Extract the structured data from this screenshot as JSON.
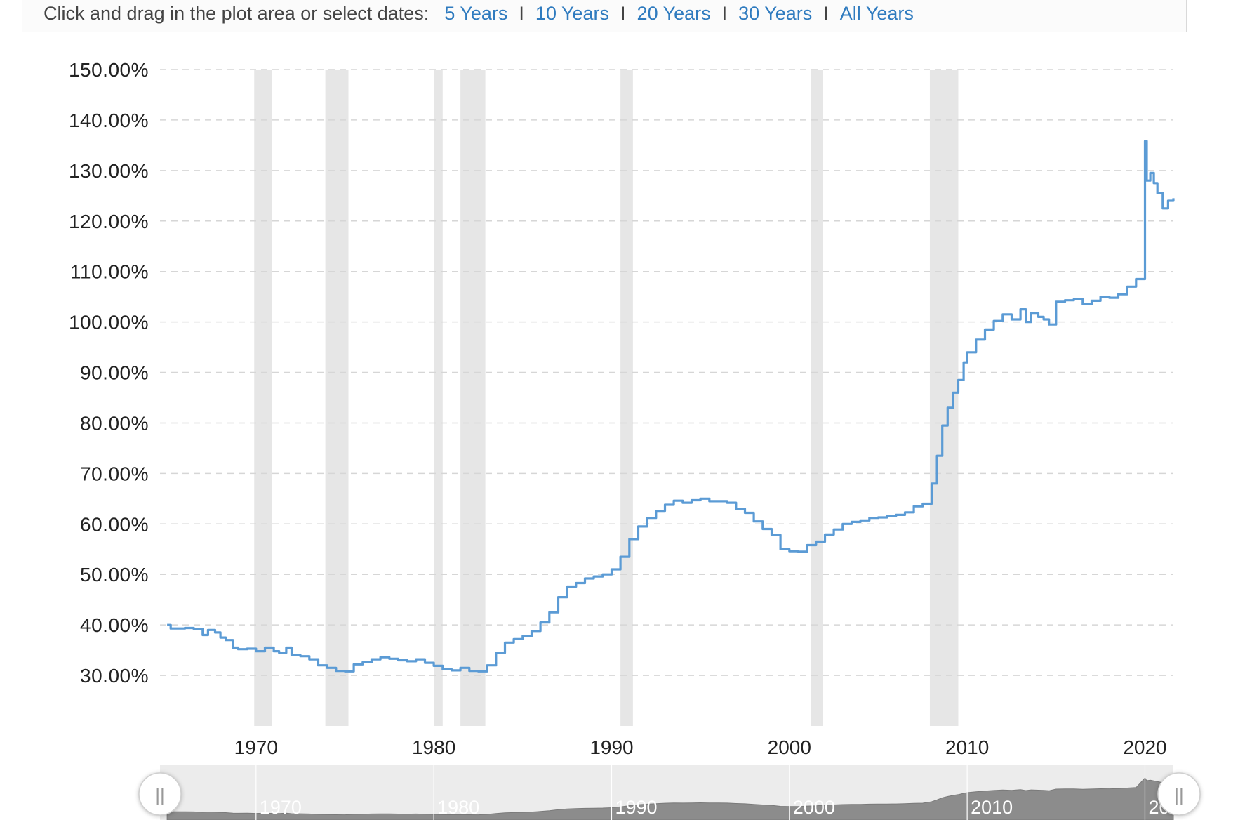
{
  "range_selector": {
    "prompt": "Click and drag in the plot area or select dates:",
    "options": [
      "5 Years",
      "10 Years",
      "20 Years",
      "30 Years",
      "All Years"
    ],
    "separator": "I"
  },
  "colors": {
    "line": "#5b9bd5",
    "recession": "#e6e6e6",
    "grid": "#d6d6d6",
    "navigator_fill": "#8c8c8c",
    "navigator_bg": "#ececec"
  },
  "chart_data": {
    "type": "line",
    "title": "",
    "xlabel": "",
    "ylabel": "",
    "ylim": [
      20,
      150
    ],
    "xlim": [
      1964.6,
      2021.6
    ],
    "yticks": [
      "150.00%",
      "140.00%",
      "130.00%",
      "120.00%",
      "110.00%",
      "100.00%",
      "90.00%",
      "80.00%",
      "70.00%",
      "60.00%",
      "50.00%",
      "40.00%",
      "30.00%"
    ],
    "ytick_values": [
      150,
      140,
      130,
      120,
      110,
      100,
      90,
      80,
      70,
      60,
      50,
      40,
      30
    ],
    "xticks": [
      "1970",
      "1980",
      "1990",
      "2000",
      "2010",
      "2020"
    ],
    "xtick_values": [
      1970,
      1980,
      1990,
      2000,
      2010,
      2020
    ],
    "grid": "horizontal dashed",
    "recessions": [
      [
        1969.9,
        1970.9
      ],
      [
        1973.9,
        1975.2
      ],
      [
        1980.0,
        1980.5
      ],
      [
        1981.5,
        1982.9
      ],
      [
        1990.5,
        1991.2
      ],
      [
        2001.2,
        2001.9
      ],
      [
        2007.9,
        2009.5
      ]
    ],
    "series": [
      {
        "x": [
          1965.0,
          1965.2,
          1966.0,
          1966.5,
          1967.0,
          1967.3,
          1967.7,
          1968.0,
          1968.3,
          1968.7,
          1969.0,
          1969.5,
          1970.0,
          1970.5,
          1971.0,
          1971.3,
          1971.7,
          1972.0,
          1972.5,
          1973.0,
          1973.5,
          1974.0,
          1974.5,
          1975.0,
          1975.5,
          1976.0,
          1976.5,
          1977.0,
          1977.5,
          1978.0,
          1978.5,
          1979.0,
          1979.5,
          1980.0,
          1980.5,
          1981.0,
          1981.5,
          1982.0,
          1982.5,
          1983.0,
          1983.5,
          1984.0,
          1984.5,
          1985.0,
          1985.5,
          1986.0,
          1986.5,
          1987.0,
          1987.5,
          1988.0,
          1988.5,
          1989.0,
          1989.5,
          1990.0,
          1990.5,
          1991.0,
          1991.5,
          1992.0,
          1992.5,
          1993.0,
          1993.5,
          1994.0,
          1994.5,
          1995.0,
          1995.5,
          1996.0,
          1996.5,
          1997.0,
          1997.5,
          1998.0,
          1998.5,
          1999.0,
          1999.5,
          2000.0,
          2000.5,
          2001.0,
          2001.5,
          2002.0,
          2002.5,
          2003.0,
          2003.5,
          2004.0,
          2004.5,
          2005.0,
          2005.5,
          2006.0,
          2006.5,
          2007.0,
          2007.5,
          2008.0,
          2008.3,
          2008.6,
          2008.9,
          2009.2,
          2009.5,
          2009.8,
          2010.0,
          2010.5,
          2011.0,
          2011.5,
          2012.0,
          2012.5,
          2013.0,
          2013.3,
          2013.6,
          2014.0,
          2014.3,
          2014.6,
          2015.0,
          2015.5,
          2016.0,
          2016.5,
          2017.0,
          2017.5,
          2018.0,
          2018.5,
          2019.0,
          2019.5,
          2020.0,
          2020.1,
          2020.3,
          2020.5,
          2020.7,
          2021.0,
          2021.3,
          2021.6
        ],
        "y": [
          40.0,
          39.3,
          39.4,
          39.2,
          38.0,
          39.0,
          38.5,
          37.5,
          37.0,
          35.5,
          35.2,
          35.3,
          34.8,
          35.5,
          34.8,
          34.5,
          35.5,
          34.0,
          33.8,
          33.2,
          32.0,
          31.5,
          30.9,
          30.8,
          32.2,
          32.6,
          33.2,
          33.6,
          33.3,
          33.0,
          32.8,
          33.2,
          32.5,
          31.9,
          31.2,
          31.0,
          31.5,
          30.9,
          30.8,
          32.0,
          34.5,
          36.5,
          37.2,
          37.8,
          38.8,
          40.5,
          42.5,
          45.5,
          47.6,
          48.3,
          49.2,
          49.6,
          50.0,
          51.0,
          53.5,
          57.0,
          59.5,
          61.2,
          62.6,
          63.8,
          64.6,
          64.2,
          64.7,
          65.0,
          64.5,
          64.5,
          64.2,
          63.0,
          62.2,
          60.5,
          59.0,
          57.8,
          55.0,
          54.6,
          54.5,
          55.8,
          56.5,
          57.9,
          58.9,
          60.0,
          60.4,
          60.7,
          61.2,
          61.3,
          61.6,
          61.8,
          62.3,
          63.5,
          64.0,
          68.0,
          73.5,
          79.5,
          83.0,
          86.0,
          88.5,
          92.0,
          94.0,
          96.5,
          98.5,
          100.2,
          101.5,
          100.5,
          102.5,
          100.0,
          101.8,
          101.0,
          100.5,
          99.5,
          104.0,
          104.3,
          104.5,
          103.5,
          104.2,
          105.0,
          104.8,
          105.5,
          107.0,
          108.5,
          135.8,
          128.0,
          129.5,
          127.5,
          125.5,
          122.5,
          124.0,
          124.5
        ]
      }
    ]
  },
  "navigator": {
    "labels": [
      "1970",
      "1980",
      "1990",
      "2000",
      "2010",
      "20"
    ],
    "label_years": [
      1970,
      1980,
      1990,
      2000,
      2010,
      2020
    ],
    "handle_left": "||",
    "handle_right": "||"
  }
}
